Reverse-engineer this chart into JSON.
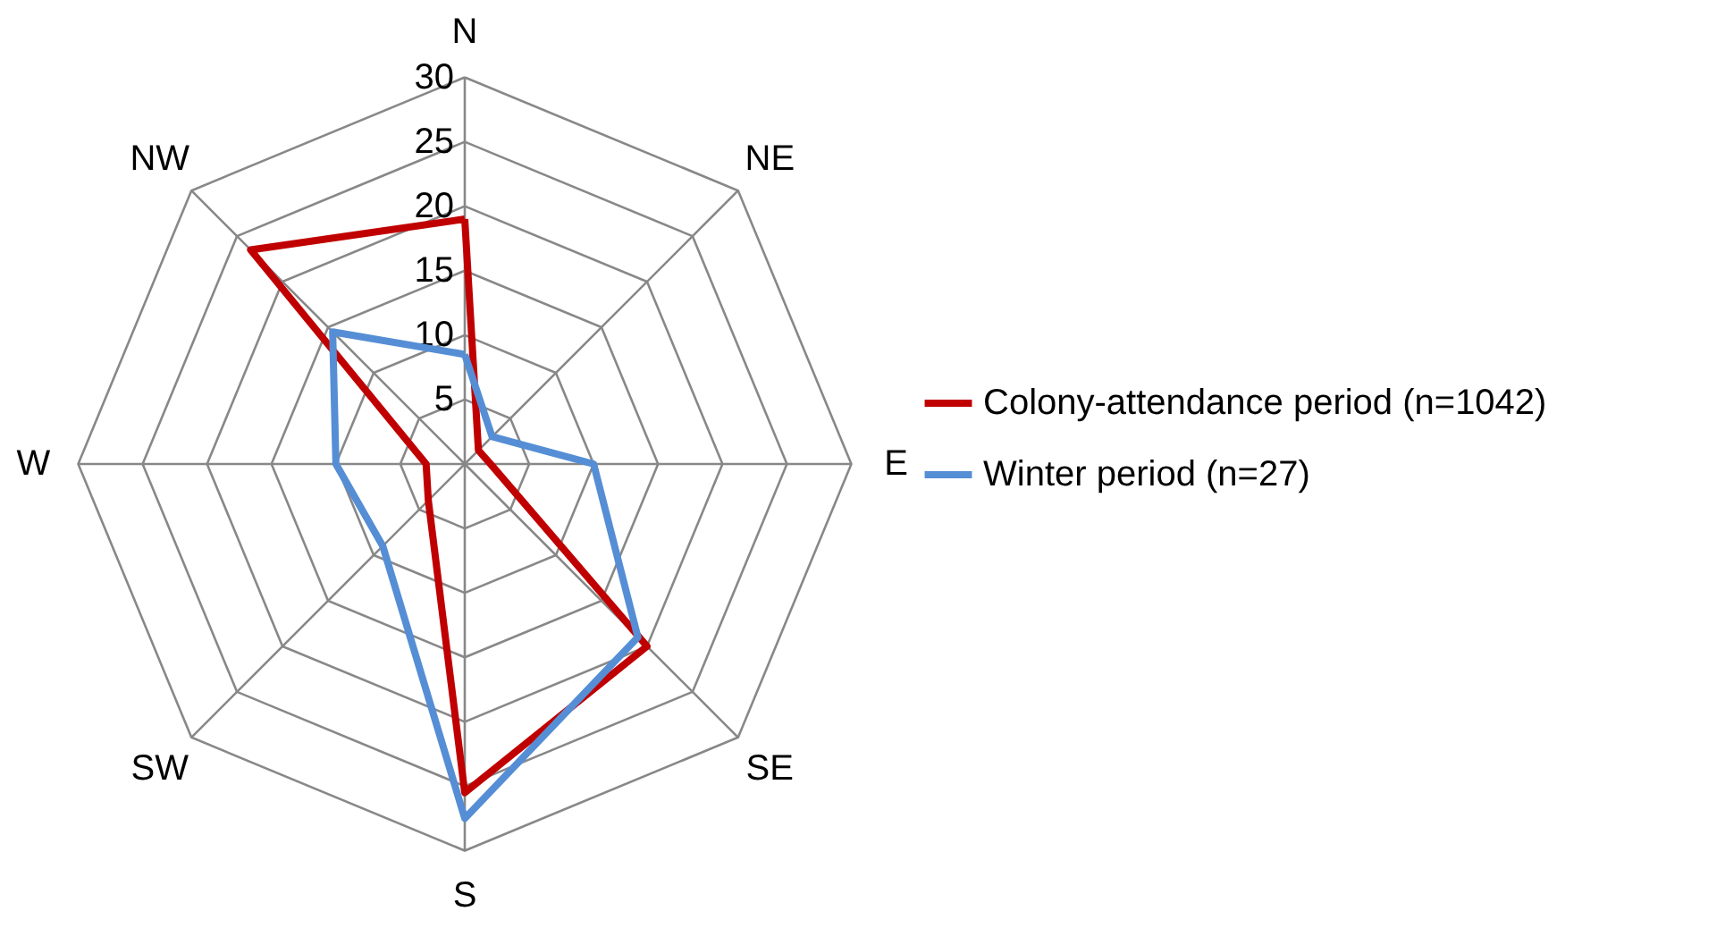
{
  "chart_data": {
    "type": "radar",
    "categories": [
      "N",
      "NE",
      "E",
      "SE",
      "S",
      "SW",
      "W",
      "NW"
    ],
    "series": [
      {
        "name": "Colony-attendance period (n=1042)",
        "color": "#c00000",
        "values": [
          19,
          1.5,
          2,
          20,
          25.5,
          4,
          3,
          23.5
        ]
      },
      {
        "name": "Winter period (n=27)",
        "color": "#558ed5",
        "values": [
          8.5,
          3,
          10,
          19,
          27.5,
          9,
          10,
          14.5
        ]
      }
    ],
    "ylim": [
      0,
      30
    ],
    "yticks": [
      5,
      10,
      15,
      20,
      25,
      30
    ],
    "grid": true,
    "legend": "right"
  }
}
